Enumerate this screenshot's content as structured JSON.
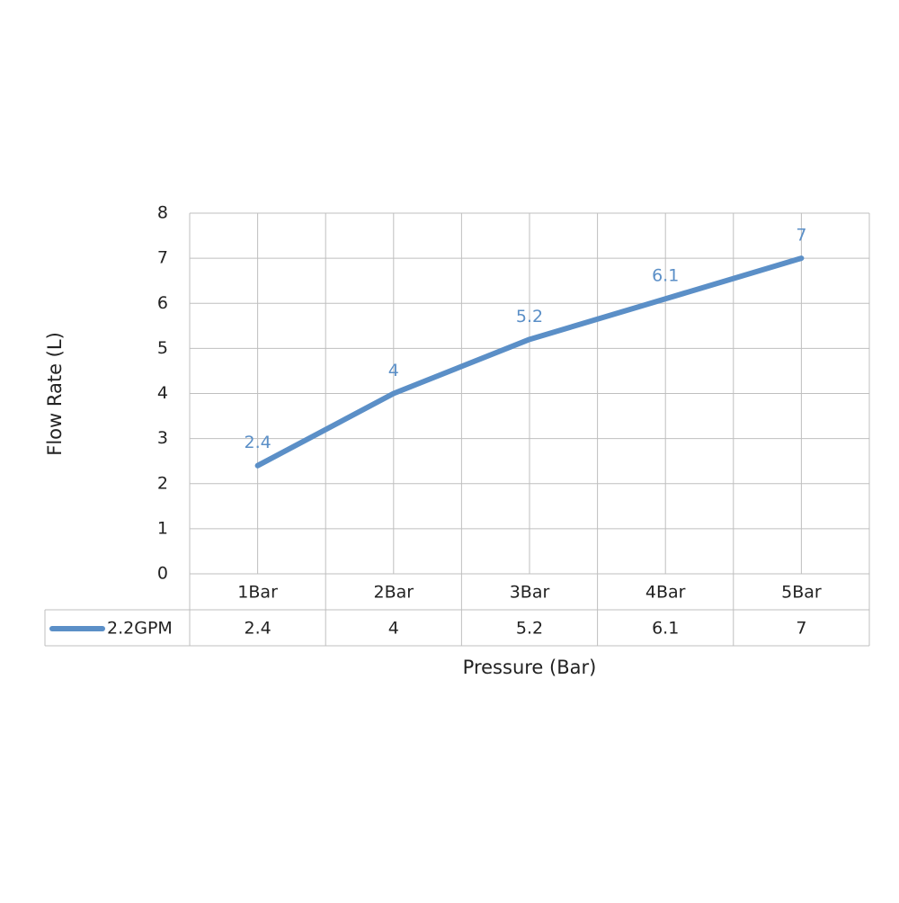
{
  "chart_data": {
    "type": "line",
    "x_label": "Pressure (Bar)",
    "y_label": "Flow Rate (L)",
    "categories": [
      "1Bar",
      "2Bar",
      "3Bar",
      "4Bar",
      "5Bar"
    ],
    "series": [
      {
        "name": "2.2GPM",
        "color": "#5b8fc7",
        "values": [
          2.4,
          4,
          5.2,
          6.1,
          7
        ]
      }
    ],
    "ylim": [
      0,
      8
    ],
    "yticks": [
      0,
      1,
      2,
      3,
      4,
      5,
      6,
      7,
      8
    ],
    "grid": true,
    "data_table": true,
    "data_labels": true
  }
}
